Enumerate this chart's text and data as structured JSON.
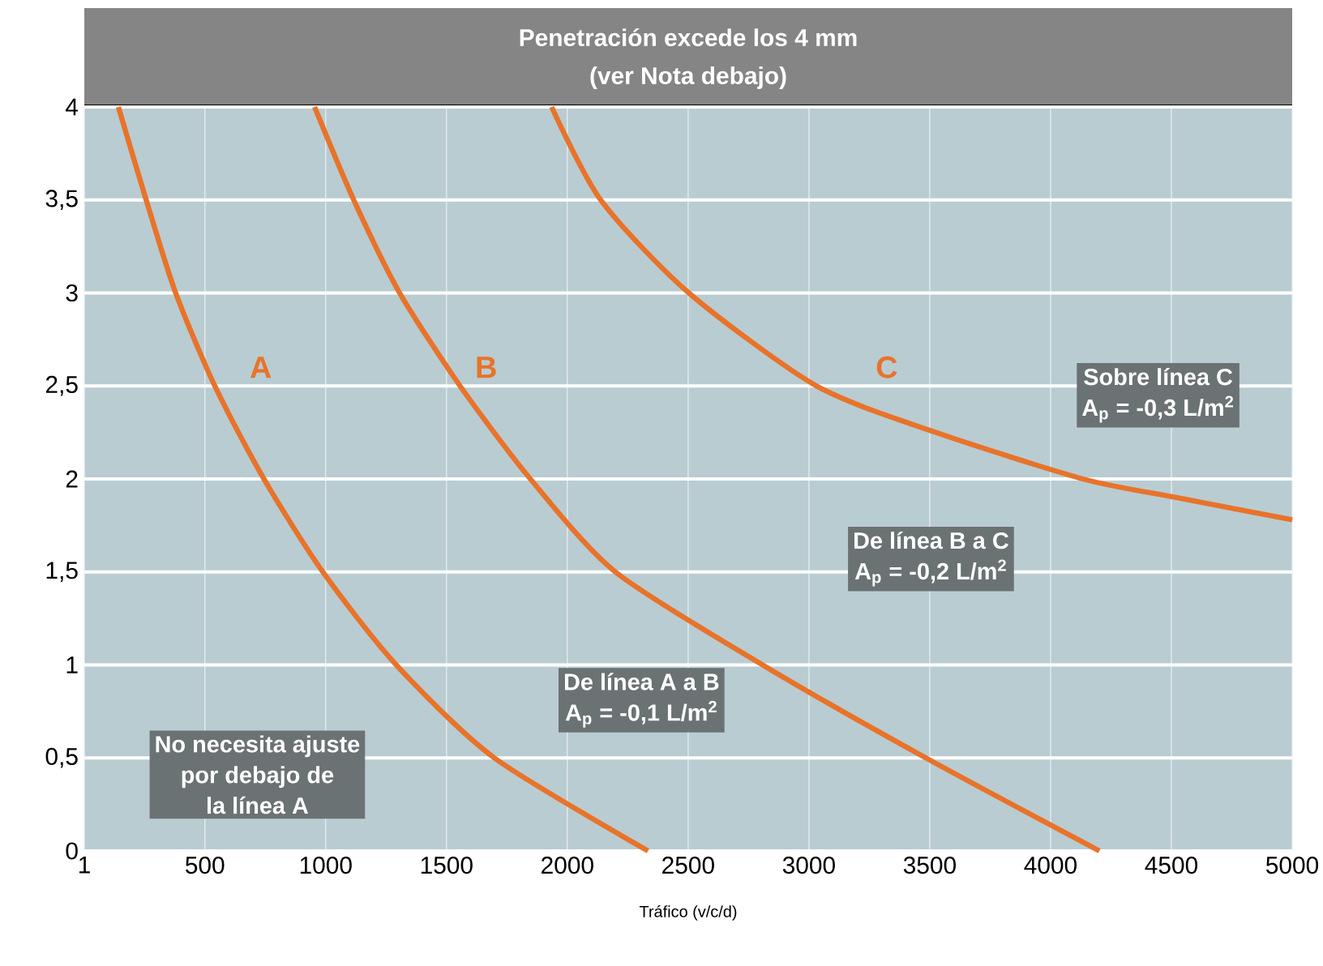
{
  "chart_data": {
    "type": "line",
    "title": "Penetración excede los 4 mm",
    "subtitle": "(ver Nota debajo)",
    "xlabel": "Tráfico (v/c/d)",
    "xlim": [
      1,
      5000
    ],
    "ylim": [
      0,
      4
    ],
    "xticks": [
      1,
      500,
      1000,
      1500,
      2000,
      2500,
      3000,
      3500,
      4000,
      4500,
      5000
    ],
    "yticks": [
      0,
      {
        "value": 0.5,
        "label": "0,5"
      },
      1,
      {
        "value": 1.5,
        "label": "1,5"
      },
      2,
      {
        "value": 2.5,
        "label": "2,5"
      },
      3,
      {
        "value": 3.5,
        "label": "3,5"
      },
      4
    ],
    "grid": true,
    "legend": false,
    "marker": "none",
    "line_style": "solid",
    "series": [
      {
        "name": "A",
        "color": "#e8732a",
        "x": [
          142,
          257,
          379,
          541,
          744,
          988,
          1292,
          1698,
          2334
        ],
        "values": [
          4,
          3.5,
          3,
          2.5,
          2,
          1.5,
          1,
          0.5,
          0
        ]
      },
      {
        "name": "B",
        "color": "#e8732a",
        "x": [
          954,
          1116,
          1306,
          1556,
          1847,
          2199,
          2808,
          3484,
          4202
        ],
        "values": [
          4,
          3.5,
          3,
          2.5,
          2,
          1.5,
          1,
          0.5,
          0
        ]
      },
      {
        "name": "C",
        "color": "#e8732a",
        "x": [
          1935,
          2138,
          2503,
          3031,
          3525,
          4134,
          4520,
          5000
        ],
        "values": [
          4,
          3.5,
          3,
          2.5,
          2.25,
          2,
          1.9,
          1.78
        ]
      }
    ],
    "annotations": [
      "No necesita ajuste",
      "por debajo de",
      "la línea A",
      "De línea A a B",
      "A$_{p}$ = -0,1 L/m$^{2}$",
      "De línea B a C",
      "A$_{p}$ = -0,2 L/m$^{2}$",
      "Sobre línea C",
      "A$_{p}$ = -0,3 L/m$^{2}$"
    ]
  }
}
